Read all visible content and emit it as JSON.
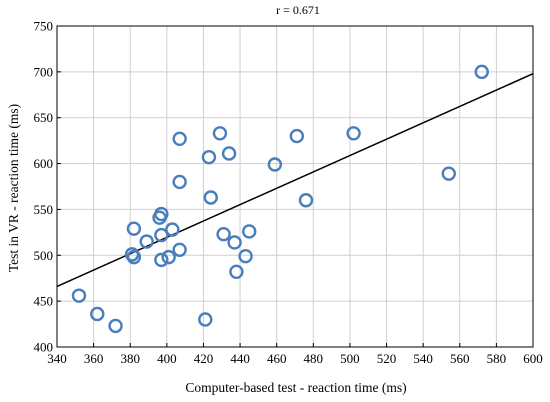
{
  "chart_data": {
    "type": "scatter",
    "title": "",
    "annotation": "r = 0.671",
    "xlabel": "Computer-based test - reaction time (ms)",
    "ylabel": "Test in VR - reaction time (ms)",
    "xlim": [
      340,
      600
    ],
    "ylim": [
      400,
      750
    ],
    "x_ticks": [
      340,
      360,
      380,
      400,
      420,
      440,
      460,
      480,
      500,
      520,
      540,
      560,
      580,
      600
    ],
    "y_ticks": [
      400,
      450,
      500,
      550,
      600,
      650,
      700,
      750
    ],
    "grid": true,
    "marker_color": "#4a7ebb",
    "line_color": "#000000",
    "points": [
      {
        "x": 352,
        "y": 456
      },
      {
        "x": 362,
        "y": 436
      },
      {
        "x": 372,
        "y": 423
      },
      {
        "x": 381,
        "y": 501
      },
      {
        "x": 382,
        "y": 498
      },
      {
        "x": 382,
        "y": 529
      },
      {
        "x": 389,
        "y": 515
      },
      {
        "x": 396,
        "y": 541
      },
      {
        "x": 397,
        "y": 545
      },
      {
        "x": 397,
        "y": 522
      },
      {
        "x": 397,
        "y": 495
      },
      {
        "x": 401,
        "y": 498
      },
      {
        "x": 403,
        "y": 528
      },
      {
        "x": 407,
        "y": 627
      },
      {
        "x": 407,
        "y": 580
      },
      {
        "x": 407,
        "y": 506
      },
      {
        "x": 421,
        "y": 430
      },
      {
        "x": 423,
        "y": 607
      },
      {
        "x": 424,
        "y": 563
      },
      {
        "x": 429,
        "y": 633
      },
      {
        "x": 431,
        "y": 523
      },
      {
        "x": 434,
        "y": 611
      },
      {
        "x": 437,
        "y": 514
      },
      {
        "x": 438,
        "y": 482
      },
      {
        "x": 443,
        "y": 499
      },
      {
        "x": 445,
        "y": 526
      },
      {
        "x": 459,
        "y": 599
      },
      {
        "x": 471,
        "y": 630
      },
      {
        "x": 476,
        "y": 560
      },
      {
        "x": 502,
        "y": 633
      },
      {
        "x": 554,
        "y": 589
      },
      {
        "x": 572,
        "y": 700
      }
    ],
    "regression_line": {
      "x": [
        340,
        600
      ],
      "y": [
        466,
        698
      ]
    }
  }
}
